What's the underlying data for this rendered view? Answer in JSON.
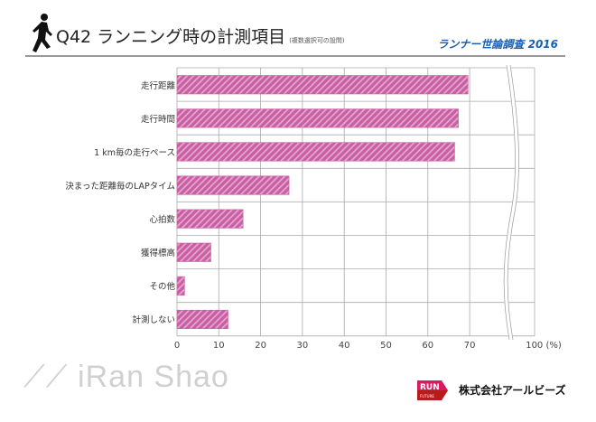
{
  "header": {
    "title": "Q42 ランニング時の計測項目",
    "subtitle": "(複数選択可の設問)",
    "survey": "ランナー世論調査 2016"
  },
  "footer": {
    "watermark": "iRan Shao",
    "company": "株式会社アールビーズ",
    "logo_text": [
      "RUN",
      "FOR THE",
      "FUTURE"
    ]
  },
  "colors": {
    "bar": "#c95ea3",
    "bar_stripe": "#e3a6cc",
    "grid": "#aaaaaa",
    "survey": "#1a5fb4"
  },
  "chart_data": {
    "type": "bar",
    "orientation": "horizontal",
    "categories": [
      "走行距離",
      "走行時間",
      "1 km毎の走行ペース",
      "決まった距離毎のLAPタイム",
      "心拍数",
      "獲得標高",
      "その他",
      "計測しない"
    ],
    "values": [
      69.6,
      67.3,
      66.4,
      26.8,
      15.8,
      8.1,
      1.8,
      12.2
    ],
    "xticks": [
      "0",
      "10",
      "20",
      "30",
      "40",
      "50",
      "60",
      "70",
      "100 (%)"
    ],
    "xlim": [
      0,
      100
    ],
    "axis_break": [
      70,
      100
    ],
    "grid": true,
    "xlabel": "",
    "ylabel": ""
  }
}
